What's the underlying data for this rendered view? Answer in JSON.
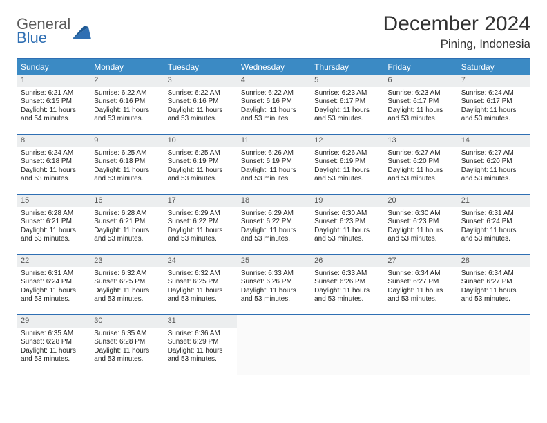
{
  "logo": {
    "line1": "General",
    "line2": "Blue"
  },
  "title": "December 2024",
  "location": "Pining, Indonesia",
  "colors": {
    "header_bar": "#3b8ac4",
    "rule": "#2f6fb3",
    "daynum_bg": "#eceeef",
    "logo_gray": "#5a5a5a",
    "logo_blue": "#2f6fb3"
  },
  "weekdays": [
    "Sunday",
    "Monday",
    "Tuesday",
    "Wednesday",
    "Thursday",
    "Friday",
    "Saturday"
  ],
  "weeks": [
    [
      {
        "n": "1",
        "sr": "Sunrise: 6:21 AM",
        "ss": "Sunset: 6:15 PM",
        "d1": "Daylight: 11 hours",
        "d2": "and 54 minutes."
      },
      {
        "n": "2",
        "sr": "Sunrise: 6:22 AM",
        "ss": "Sunset: 6:16 PM",
        "d1": "Daylight: 11 hours",
        "d2": "and 53 minutes."
      },
      {
        "n": "3",
        "sr": "Sunrise: 6:22 AM",
        "ss": "Sunset: 6:16 PM",
        "d1": "Daylight: 11 hours",
        "d2": "and 53 minutes."
      },
      {
        "n": "4",
        "sr": "Sunrise: 6:22 AM",
        "ss": "Sunset: 6:16 PM",
        "d1": "Daylight: 11 hours",
        "d2": "and 53 minutes."
      },
      {
        "n": "5",
        "sr": "Sunrise: 6:23 AM",
        "ss": "Sunset: 6:17 PM",
        "d1": "Daylight: 11 hours",
        "d2": "and 53 minutes."
      },
      {
        "n": "6",
        "sr": "Sunrise: 6:23 AM",
        "ss": "Sunset: 6:17 PM",
        "d1": "Daylight: 11 hours",
        "d2": "and 53 minutes."
      },
      {
        "n": "7",
        "sr": "Sunrise: 6:24 AM",
        "ss": "Sunset: 6:17 PM",
        "d1": "Daylight: 11 hours",
        "d2": "and 53 minutes."
      }
    ],
    [
      {
        "n": "8",
        "sr": "Sunrise: 6:24 AM",
        "ss": "Sunset: 6:18 PM",
        "d1": "Daylight: 11 hours",
        "d2": "and 53 minutes."
      },
      {
        "n": "9",
        "sr": "Sunrise: 6:25 AM",
        "ss": "Sunset: 6:18 PM",
        "d1": "Daylight: 11 hours",
        "d2": "and 53 minutes."
      },
      {
        "n": "10",
        "sr": "Sunrise: 6:25 AM",
        "ss": "Sunset: 6:19 PM",
        "d1": "Daylight: 11 hours",
        "d2": "and 53 minutes."
      },
      {
        "n": "11",
        "sr": "Sunrise: 6:26 AM",
        "ss": "Sunset: 6:19 PM",
        "d1": "Daylight: 11 hours",
        "d2": "and 53 minutes."
      },
      {
        "n": "12",
        "sr": "Sunrise: 6:26 AM",
        "ss": "Sunset: 6:19 PM",
        "d1": "Daylight: 11 hours",
        "d2": "and 53 minutes."
      },
      {
        "n": "13",
        "sr": "Sunrise: 6:27 AM",
        "ss": "Sunset: 6:20 PM",
        "d1": "Daylight: 11 hours",
        "d2": "and 53 minutes."
      },
      {
        "n": "14",
        "sr": "Sunrise: 6:27 AM",
        "ss": "Sunset: 6:20 PM",
        "d1": "Daylight: 11 hours",
        "d2": "and 53 minutes."
      }
    ],
    [
      {
        "n": "15",
        "sr": "Sunrise: 6:28 AM",
        "ss": "Sunset: 6:21 PM",
        "d1": "Daylight: 11 hours",
        "d2": "and 53 minutes."
      },
      {
        "n": "16",
        "sr": "Sunrise: 6:28 AM",
        "ss": "Sunset: 6:21 PM",
        "d1": "Daylight: 11 hours",
        "d2": "and 53 minutes."
      },
      {
        "n": "17",
        "sr": "Sunrise: 6:29 AM",
        "ss": "Sunset: 6:22 PM",
        "d1": "Daylight: 11 hours",
        "d2": "and 53 minutes."
      },
      {
        "n": "18",
        "sr": "Sunrise: 6:29 AM",
        "ss": "Sunset: 6:22 PM",
        "d1": "Daylight: 11 hours",
        "d2": "and 53 minutes."
      },
      {
        "n": "19",
        "sr": "Sunrise: 6:30 AM",
        "ss": "Sunset: 6:23 PM",
        "d1": "Daylight: 11 hours",
        "d2": "and 53 minutes."
      },
      {
        "n": "20",
        "sr": "Sunrise: 6:30 AM",
        "ss": "Sunset: 6:23 PM",
        "d1": "Daylight: 11 hours",
        "d2": "and 53 minutes."
      },
      {
        "n": "21",
        "sr": "Sunrise: 6:31 AM",
        "ss": "Sunset: 6:24 PM",
        "d1": "Daylight: 11 hours",
        "d2": "and 53 minutes."
      }
    ],
    [
      {
        "n": "22",
        "sr": "Sunrise: 6:31 AM",
        "ss": "Sunset: 6:24 PM",
        "d1": "Daylight: 11 hours",
        "d2": "and 53 minutes."
      },
      {
        "n": "23",
        "sr": "Sunrise: 6:32 AM",
        "ss": "Sunset: 6:25 PM",
        "d1": "Daylight: 11 hours",
        "d2": "and 53 minutes."
      },
      {
        "n": "24",
        "sr": "Sunrise: 6:32 AM",
        "ss": "Sunset: 6:25 PM",
        "d1": "Daylight: 11 hours",
        "d2": "and 53 minutes."
      },
      {
        "n": "25",
        "sr": "Sunrise: 6:33 AM",
        "ss": "Sunset: 6:26 PM",
        "d1": "Daylight: 11 hours",
        "d2": "and 53 minutes."
      },
      {
        "n": "26",
        "sr": "Sunrise: 6:33 AM",
        "ss": "Sunset: 6:26 PM",
        "d1": "Daylight: 11 hours",
        "d2": "and 53 minutes."
      },
      {
        "n": "27",
        "sr": "Sunrise: 6:34 AM",
        "ss": "Sunset: 6:27 PM",
        "d1": "Daylight: 11 hours",
        "d2": "and 53 minutes."
      },
      {
        "n": "28",
        "sr": "Sunrise: 6:34 AM",
        "ss": "Sunset: 6:27 PM",
        "d1": "Daylight: 11 hours",
        "d2": "and 53 minutes."
      }
    ],
    [
      {
        "n": "29",
        "sr": "Sunrise: 6:35 AM",
        "ss": "Sunset: 6:28 PM",
        "d1": "Daylight: 11 hours",
        "d2": "and 53 minutes."
      },
      {
        "n": "30",
        "sr": "Sunrise: 6:35 AM",
        "ss": "Sunset: 6:28 PM",
        "d1": "Daylight: 11 hours",
        "d2": "and 53 minutes."
      },
      {
        "n": "31",
        "sr": "Sunrise: 6:36 AM",
        "ss": "Sunset: 6:29 PM",
        "d1": "Daylight: 11 hours",
        "d2": "and 53 minutes."
      },
      null,
      null,
      null,
      null
    ]
  ]
}
